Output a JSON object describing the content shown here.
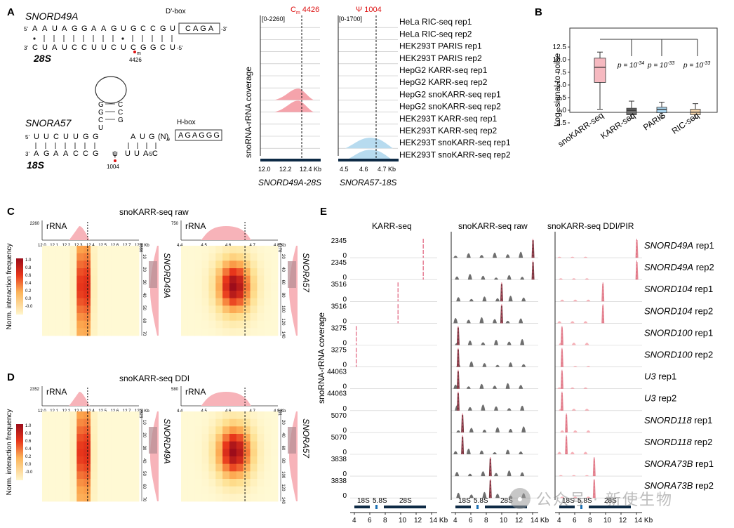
{
  "panels": {
    "A": {
      "label": "A",
      "top": {
        "sno_name": "SNORD49A",
        "rrna_name": "28S",
        "sno_5": "5'",
        "sno_3": "-3'",
        "rrna_3": "3'",
        "rrna_5": "-5'",
        "sno_seq": [
          "A",
          "A",
          "U",
          "A",
          "G",
          "G",
          "A",
          "A",
          "G",
          "U",
          "G",
          "C",
          "C",
          "G",
          "U"
        ],
        "dbox_label": "D'-box",
        "dbox_seq": "CAGA",
        "pair_marks": [
          "•",
          "|",
          "|",
          "|",
          "|",
          "|",
          "|",
          "|",
          "|",
          "•",
          "|",
          "|",
          "|",
          "|",
          "|"
        ],
        "rrna_seq": [
          "C",
          "U",
          "A",
          "U",
          "C",
          "C",
          "U",
          "U",
          "C",
          "U",
          "C",
          "G",
          "G",
          "C",
          "U"
        ],
        "mod": "m",
        "pos": "4426"
      },
      "bottom": {
        "sno_name": "SNORA57",
        "rrna_name": "18S",
        "sno_5": "5'",
        "sno_3": "3'",
        "hairpin": [
          "G",
          "G",
          "C",
          "U"
        ],
        "hairpin_pair": [
          "C",
          "C",
          "G"
        ],
        "sno_seq_left": [
          "U",
          "U",
          "C",
          "U",
          "U",
          "G",
          "G"
        ],
        "sno_seq_right": [
          "A",
          "U",
          "G",
          "(N)"
        ],
        "n_sub": "9",
        "hbox_label": "H-box",
        "hbox_seq": "AGAGGG",
        "rrna_seq_left": [
          "A",
          "G",
          "A",
          "A",
          "C",
          "C",
          "G"
        ],
        "psi": "ψ",
        "rrna_seq_right": [
          "U",
          "U",
          "A",
          "C"
        ],
        "rrna_5": "-5'",
        "pos": "1004"
      },
      "coverage": {
        "ylabel": "snoRNA-rRNA coverage",
        "left": {
          "range": "[0-2260]",
          "marker": "C",
          "marker_sub": "m",
          "marker_pos": "4426",
          "ticks": [
            "12.0",
            "12.2",
            "12.4 Kb"
          ],
          "title": "SNORD49A-28S"
        },
        "right": {
          "range": "[0-1700]",
          "marker": "Ψ 1004",
          "ticks": [
            "4.5",
            "4.6",
            "4.7 Kb"
          ],
          "title": "SNORA57-18S"
        },
        "tracks": [
          {
            "label": "HeLa RIC-seq rep1",
            "type": "flat"
          },
          {
            "label": "HeLa RIC-seq rep2",
            "type": "flat"
          },
          {
            "label": "HEK293T PARIS rep1",
            "type": "flat"
          },
          {
            "label": "HEK293T PARIS rep2",
            "type": "flat"
          },
          {
            "label": "HepG2 KARR-seq rep1",
            "type": "flat"
          },
          {
            "label": "HepG2 KARR-seq rep2",
            "type": "flat"
          },
          {
            "label": "HepG2 snoKARR-seq rep1",
            "type": "pink"
          },
          {
            "label": "HepG2 snoKARR-seq rep2",
            "type": "pink"
          },
          {
            "label": "HEK293T KARR-seq rep1",
            "type": "flat"
          },
          {
            "label": "HEK293T KARR-seq rep2",
            "type": "flat"
          },
          {
            "label": "HEK293T snoKARR-seq rep1",
            "type": "blue"
          },
          {
            "label": "HEK293T snoKARR-seq rep2",
            "type": "blue"
          }
        ]
      }
    },
    "B": {
      "label": "B",
      "ylabel": "Log",
      "ylabel_sub": "2",
      "ylabel_rest": " signal to noise",
      "yticks": [
        "12.5",
        "10.0",
        "7.5",
        "5.0",
        "2.5",
        "0.0",
        "-2.5"
      ],
      "pvals": [
        "p = 10",
        "p = 10",
        "p = 10"
      ],
      "pexp": [
        "-34",
        "-33",
        "-33"
      ],
      "colors": {
        "snoKARR": "#f6b9c0",
        "KARR": "#6e6e6e",
        "PARIS": "#a9d3ec",
        "RIC": "#f3d5ad"
      }
    },
    "C": {
      "label": "C",
      "title": "snoKARR-seq raw",
      "left_max": "2260",
      "right_max": "750",
      "left_side_max": "8686",
      "right_side_max": "6170",
      "left_sno": "SNORD49A",
      "right_sno": "SNORA57"
    },
    "D": {
      "label": "D",
      "title": "snoKARR-seq DDI",
      "left_max": "2352",
      "right_max": "580",
      "left_side_max": "2323",
      "right_side_max": "391",
      "left_sno": "SNORD49A",
      "right_sno": "SNORA57"
    },
    "E": {
      "label": "E",
      "ylabel": "snoRNA-rRNA coverage",
      "col_titles": [
        "KARR-seq",
        "snoKARR-seq raw",
        "snoKARR-seq DDI/PIR"
      ],
      "rows": [
        {
          "max": "2345",
          "name": "SNORD49A",
          "rep": "rep1"
        },
        {
          "max": "2345",
          "name": "SNORD49A",
          "rep": "rep2"
        },
        {
          "max": "3516",
          "name": "SNORD104",
          "rep": "rep1"
        },
        {
          "max": "3516",
          "name": "SNORD104",
          "rep": "rep2"
        },
        {
          "max": "3275",
          "name": "SNORD100",
          "rep": "rep1"
        },
        {
          "max": "3275",
          "name": "SNORD100",
          "rep": "rep2"
        },
        {
          "max": "44063",
          "name": "U3",
          "rep": "rep1"
        },
        {
          "max": "44063",
          "name": "U3",
          "rep": "rep2"
        },
        {
          "max": "5070",
          "name": "SNORD118",
          "rep": "rep1"
        },
        {
          "max": "5070",
          "name": "SNORD118",
          "rep": "rep2"
        },
        {
          "max": "3838",
          "name": "SNORA73B",
          "rep": "rep1"
        },
        {
          "max": "3838",
          "name": "SNORA73B",
          "rep": "rep2"
        }
      ],
      "zero": "0",
      "genes": [
        "18S",
        "5.8S",
        "28S"
      ],
      "xticks": [
        "4",
        "6",
        "8",
        "10",
        "12",
        "14 Kb"
      ]
    },
    "heatmap_legend": {
      "label": "Norm. interaction frequency",
      "ticks": [
        "1.0",
        "0.8",
        "0.6",
        "0.4",
        "0.2",
        "0.0",
        "-0.0"
      ],
      "rrna": "rRNA"
    },
    "heat_axes": {
      "left_x": [
        "12.0",
        "12.1",
        "12.2",
        "12.3",
        "12.4",
        "12.5",
        "12.6",
        "12.7",
        "12.8 Kb"
      ],
      "right_x": [
        "4.4",
        "4.5",
        "4.6",
        "4.7",
        "4.8 Kb"
      ],
      "left_y": [
        "10",
        "20",
        "30",
        "40",
        "50",
        "60",
        "70"
      ],
      "right_y": [
        "20",
        "40",
        "60",
        "80",
        "100",
        "120",
        "140"
      ]
    },
    "watermark": "公众号 · 新使生物"
  }
}
